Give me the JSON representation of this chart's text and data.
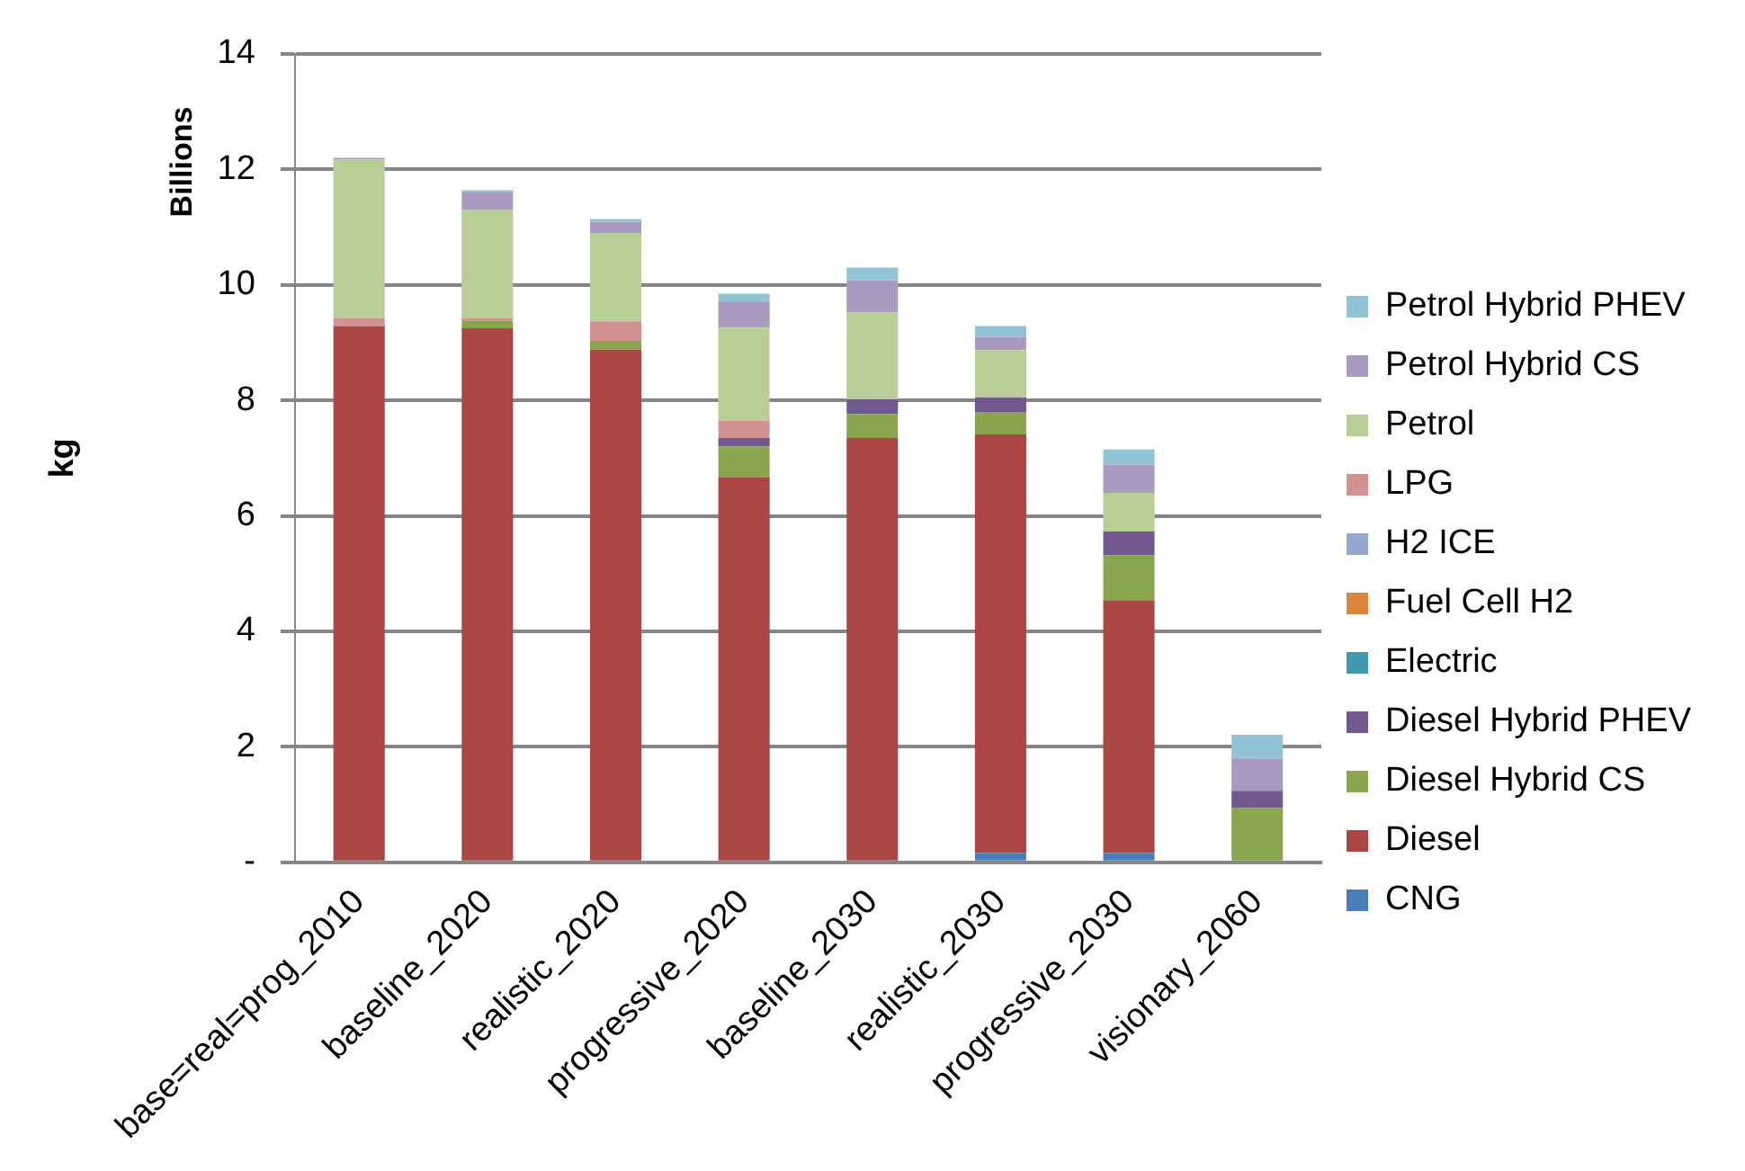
{
  "chart_data": {
    "type": "bar",
    "stacked": true,
    "ylabel": "kg",
    "annotations": [
      "Billions"
    ],
    "categories": [
      "base=real=prog_2010",
      "baseline_2020",
      "realistic_2020",
      "progressive_2020",
      "baseline_2030",
      "realistic_2030",
      "progressive_2030",
      "visionary_2060"
    ],
    "ylim": [
      0,
      14
    ],
    "yticks": [
      {
        "value": 0,
        "label": "-"
      },
      2,
      4,
      6,
      8,
      10,
      12,
      14
    ],
    "grid": "y",
    "legend": "right",
    "series": [
      {
        "name": "CNG",
        "color": "#4a7ebb",
        "values": [
          0,
          0,
          null,
          null,
          null,
          0.16,
          0.16,
          0
        ]
      },
      {
        "name": "Diesel",
        "color": "#aa4643",
        "values": [
          9.28,
          9.25,
          8.88,
          6.67,
          7.35,
          7.25,
          4.37,
          0
        ]
      },
      {
        "name": "Diesel Hybrid CS",
        "color": "#89a54e",
        "values": [
          0,
          0.13,
          0.15,
          0.53,
          0.41,
          0.38,
          0.79,
          0.94
        ]
      },
      {
        "name": "Diesel Hybrid PHEV",
        "color": "#71588f",
        "values": [
          0,
          0,
          0,
          0.15,
          0.26,
          0.26,
          0.41,
          0.3
        ]
      },
      {
        "name": "Electric",
        "color": "#4198af",
        "values": [
          0,
          0,
          0,
          0,
          0,
          0,
          0,
          0
        ]
      },
      {
        "name": "Fuel Cell H2",
        "color": "#db843d",
        "values": [
          0,
          0,
          0,
          0,
          0,
          0,
          0,
          0
        ]
      },
      {
        "name": "H2 ICE",
        "color": "#93a9cf",
        "values": [
          0,
          0,
          0,
          0,
          0,
          0,
          0,
          0
        ]
      },
      {
        "name": "LPG",
        "color": "#d19392",
        "values": [
          0.15,
          0.05,
          0.34,
          0.3,
          0,
          0,
          0,
          0
        ]
      },
      {
        "name": "Petrol",
        "color": "#b9cd96",
        "values": [
          2.74,
          1.87,
          1.53,
          1.61,
          1.5,
          0.82,
          0.67,
          0
        ]
      },
      {
        "name": "Petrol Hybrid CS",
        "color": "#a99bbd",
        "values": [
          0.03,
          0.3,
          0.19,
          0.44,
          0.56,
          0.23,
          0.49,
          0.56
        ]
      },
      {
        "name": "Petrol Hybrid PHEV",
        "color": "#92c3d4",
        "values": [
          0,
          0.04,
          0.05,
          0.15,
          0.22,
          0.19,
          0.26,
          0.41
        ]
      }
    ]
  }
}
